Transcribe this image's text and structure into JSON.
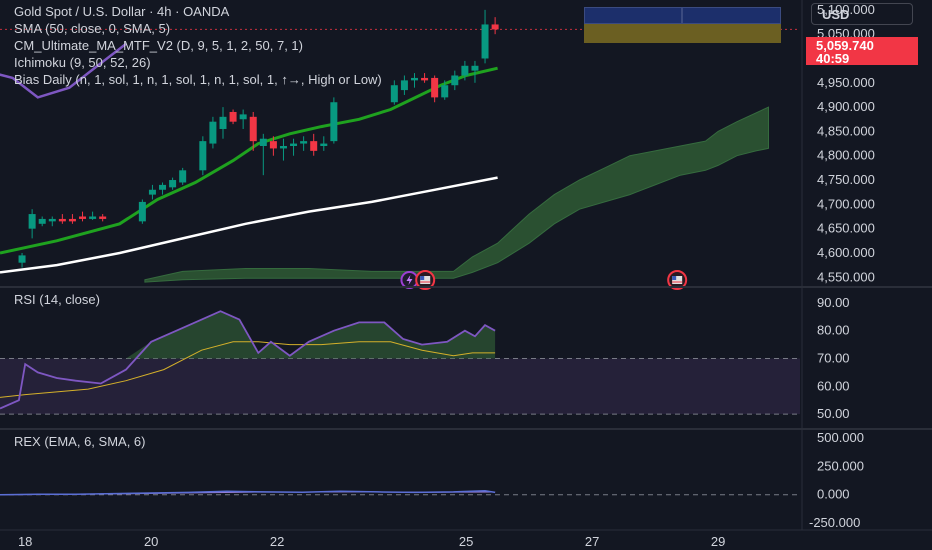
{
  "legend": {
    "symbol": "Gold Spot / U.S. Dollar · 4h · OANDA",
    "sma": "SMA (50, close, 0, SMA, 5)",
    "cm": "CM_Ultimate_MA_MTF_V2 (D, 9, 5, 1, 2, 50, 7, 1)",
    "ichimoku": "Ichimoku (9, 50, 52, 26)",
    "bias": "Bias Daily (n, 1, sol, 1, n, 1, sol, 1, n, 1, sol, 1, ↑→, High or Low)",
    "rsi": "RSI (14, close)",
    "rex": "REX (EMA, 6, SMA, 6)"
  },
  "currency": "USD",
  "last_price": "5,059.740",
  "countdown": "40:59",
  "colors": {
    "background": "#131722",
    "up": "#089981",
    "down": "#f23645",
    "sma_fast": "#1fa21f",
    "sma_slow": "#ffffff",
    "cloud": "#2f5a34",
    "rsi_line": "#7e57c2",
    "rsi_ma": "#d4b02a",
    "rsi_band": "#2a2440"
  },
  "chart_data": [
    {
      "type": "candlestick",
      "panel": "price",
      "title": "Gold Spot / U.S. Dollar · 4h · OANDA",
      "x_tick_labels": [
        "18",
        "20",
        "22",
        "25",
        "27",
        "29"
      ],
      "x_tick_days": [
        18,
        20,
        22,
        25,
        27,
        29
      ],
      "ylim": [
        4530,
        5110
      ],
      "y_tick_labels": [
        "5,100.000",
        "5,050.000",
        "5,000.000",
        "4,950.000",
        "4,900.000",
        "4,850.000",
        "4,800.000",
        "4,750.000",
        "4,700.000",
        "4,650.000",
        "4,600.000",
        "4,550.000"
      ],
      "y_ticks": [
        5100,
        5050,
        5000,
        4950,
        4900,
        4850,
        4800,
        4750,
        4700,
        4650,
        4600,
        4550
      ],
      "candles": [
        {
          "t": 17.95,
          "o": 4580,
          "h": 4600,
          "l": 4570,
          "c": 4595
        },
        {
          "t": 18.11,
          "o": 4650,
          "h": 4690,
          "l": 4630,
          "c": 4680
        },
        {
          "t": 18.27,
          "o": 4660,
          "h": 4675,
          "l": 4655,
          "c": 4670
        },
        {
          "t": 18.43,
          "o": 4665,
          "h": 4675,
          "l": 4655,
          "c": 4670
        },
        {
          "t": 18.59,
          "o": 4670,
          "h": 4680,
          "l": 4660,
          "c": 4665
        },
        {
          "t": 18.75,
          "o": 4670,
          "h": 4680,
          "l": 4660,
          "c": 4665
        },
        {
          "t": 18.91,
          "o": 4675,
          "h": 4685,
          "l": 4665,
          "c": 4670
        },
        {
          "t": 19.07,
          "o": 4670,
          "h": 4685,
          "l": 4668,
          "c": 4675
        },
        {
          "t": 19.23,
          "o": 4675,
          "h": 4680,
          "l": 4665,
          "c": 4670
        },
        {
          "t": 19.86,
          "o": 4665,
          "h": 4710,
          "l": 4660,
          "c": 4705
        },
        {
          "t": 20.02,
          "o": 4720,
          "h": 4740,
          "l": 4710,
          "c": 4730
        },
        {
          "t": 20.18,
          "o": 4730,
          "h": 4745,
          "l": 4720,
          "c": 4740
        },
        {
          "t": 20.34,
          "o": 4735,
          "h": 4755,
          "l": 4730,
          "c": 4750
        },
        {
          "t": 20.5,
          "o": 4745,
          "h": 4775,
          "l": 4740,
          "c": 4770
        },
        {
          "t": 20.82,
          "o": 4770,
          "h": 4840,
          "l": 4760,
          "c": 4830
        },
        {
          "t": 20.98,
          "o": 4825,
          "h": 4880,
          "l": 4815,
          "c": 4870
        },
        {
          "t": 21.14,
          "o": 4855,
          "h": 4900,
          "l": 4835,
          "c": 4880
        },
        {
          "t": 21.3,
          "o": 4890,
          "h": 4895,
          "l": 4865,
          "c": 4870
        },
        {
          "t": 21.46,
          "o": 4875,
          "h": 4895,
          "l": 4855,
          "c": 4885
        },
        {
          "t": 21.62,
          "o": 4880,
          "h": 4890,
          "l": 4810,
          "c": 4830
        },
        {
          "t": 21.78,
          "o": 4820,
          "h": 4845,
          "l": 4760,
          "c": 4835
        },
        {
          "t": 21.94,
          "o": 4830,
          "h": 4840,
          "l": 4800,
          "c": 4815
        },
        {
          "t": 22.1,
          "o": 4815,
          "h": 4835,
          "l": 4790,
          "c": 4820
        },
        {
          "t": 22.26,
          "o": 4820,
          "h": 4835,
          "l": 4800,
          "c": 4825
        },
        {
          "t": 22.42,
          "o": 4825,
          "h": 4840,
          "l": 4810,
          "c": 4830
        },
        {
          "t": 22.58,
          "o": 4830,
          "h": 4845,
          "l": 4800,
          "c": 4810
        },
        {
          "t": 22.74,
          "o": 4820,
          "h": 4840,
          "l": 4810,
          "c": 4825
        },
        {
          "t": 22.9,
          "o": 4830,
          "h": 4920,
          "l": 4825,
          "c": 4910
        },
        {
          "t": 23.86,
          "o": 4910,
          "h": 4955,
          "l": 4905,
          "c": 4945
        },
        {
          "t": 24.02,
          "o": 4935,
          "h": 4965,
          "l": 4925,
          "c": 4955
        },
        {
          "t": 24.18,
          "o": 4955,
          "h": 4970,
          "l": 4940,
          "c": 4960
        },
        {
          "t": 24.34,
          "o": 4960,
          "h": 4970,
          "l": 4950,
          "c": 4955
        },
        {
          "t": 24.5,
          "o": 4960,
          "h": 4965,
          "l": 4910,
          "c": 4920
        },
        {
          "t": 24.66,
          "o": 4920,
          "h": 4955,
          "l": 4915,
          "c": 4945
        },
        {
          "t": 24.82,
          "o": 4945,
          "h": 4975,
          "l": 4935,
          "c": 4965
        },
        {
          "t": 24.98,
          "o": 4965,
          "h": 4995,
          "l": 4955,
          "c": 4985
        },
        {
          "t": 25.14,
          "o": 4975,
          "h": 4995,
          "l": 4950,
          "c": 4985
        },
        {
          "t": 25.3,
          "o": 5000,
          "h": 5100,
          "l": 4990,
          "c": 5070
        },
        {
          "t": 25.46,
          "o": 5070,
          "h": 5085,
          "l": 5050,
          "c": 5059.74
        }
      ],
      "sma_fast": [
        [
          17.6,
          4600
        ],
        [
          18.5,
          4625
        ],
        [
          19.5,
          4660
        ],
        [
          20.1,
          4710
        ],
        [
          20.7,
          4745
        ],
        [
          21.3,
          4790
        ],
        [
          21.7,
          4825
        ],
        [
          22.2,
          4845
        ],
        [
          22.7,
          4860
        ],
        [
          23.3,
          4875
        ],
        [
          23.8,
          4895
        ],
        [
          24.2,
          4920
        ],
        [
          24.6,
          4945
        ],
        [
          25.0,
          4965
        ],
        [
          25.5,
          4980
        ]
      ],
      "sma_slow": [
        [
          17.6,
          4560
        ],
        [
          18.5,
          4575
        ],
        [
          19.5,
          4600
        ],
        [
          20.5,
          4630
        ],
        [
          21.5,
          4660
        ],
        [
          22.5,
          4685
        ],
        [
          23.5,
          4705
        ],
        [
          24.5,
          4730
        ],
        [
          25.5,
          4755
        ]
      ],
      "cloud_top": [
        [
          19.9,
          4545
        ],
        [
          20.5,
          4562
        ],
        [
          21.5,
          4568
        ],
        [
          22.5,
          4568
        ],
        [
          23.5,
          4562
        ],
        [
          24.8,
          4562
        ],
        [
          25.1,
          4592
        ],
        [
          25.5,
          4620
        ],
        [
          26.0,
          4680
        ],
        [
          26.4,
          4720
        ],
        [
          26.8,
          4750
        ],
        [
          27.2,
          4775
        ],
        [
          27.6,
          4800
        ],
        [
          28.0,
          4810
        ],
        [
          28.4,
          4820
        ],
        [
          28.8,
          4830
        ],
        [
          29.0,
          4850
        ],
        [
          29.3,
          4870
        ],
        [
          29.8,
          4900
        ]
      ],
      "cloud_bottom": [
        [
          19.9,
          4540
        ],
        [
          20.5,
          4545
        ],
        [
          21.5,
          4548
        ],
        [
          22.5,
          4548
        ],
        [
          23.5,
          4548
        ],
        [
          24.8,
          4548
        ],
        [
          25.1,
          4560
        ],
        [
          25.5,
          4580
        ],
        [
          26.0,
          4620
        ],
        [
          26.4,
          4660
        ],
        [
          26.8,
          4690
        ],
        [
          27.2,
          4705
        ],
        [
          27.6,
          4720
        ],
        [
          28.0,
          4740
        ],
        [
          28.4,
          4760
        ],
        [
          28.8,
          4770
        ],
        [
          29.0,
          4780
        ],
        [
          29.3,
          4800
        ],
        [
          29.6,
          4810
        ],
        [
          29.8,
          4815
        ]
      ],
      "other_line": [
        [
          17.5,
          4970
        ],
        [
          17.8,
          4960
        ],
        [
          18.2,
          4920
        ],
        [
          18.7,
          4940
        ],
        [
          19.2,
          4990
        ],
        [
          19.6,
          5030
        ]
      ],
      "event_markers": [
        {
          "t": 24.1,
          "kind": "lightning"
        },
        {
          "t": 24.35,
          "kind": "flag"
        },
        {
          "t": 28.35,
          "kind": "flag"
        }
      ]
    },
    {
      "type": "line",
      "panel": "rsi",
      "title": "RSI (14, close)",
      "ylim": [
        45,
        95
      ],
      "y_tick_labels": [
        "90.00",
        "80.00",
        "70.00",
        "60.00",
        "50.00"
      ],
      "y_ticks": [
        90,
        80,
        70,
        60,
        50
      ],
      "band": [
        50,
        70
      ],
      "series": [
        {
          "key": "rsi",
          "values": [
            [
              17.6,
              52
            ],
            [
              17.9,
              55
            ],
            [
              18.0,
              68
            ],
            [
              18.2,
              65
            ],
            [
              18.5,
              63
            ],
            [
              18.8,
              62
            ],
            [
              19.2,
              61
            ],
            [
              19.6,
              66
            ],
            [
              20.0,
              76
            ],
            [
              20.4,
              80
            ],
            [
              20.8,
              84
            ],
            [
              21.1,
              87
            ],
            [
              21.4,
              84
            ],
            [
              21.7,
              72
            ],
            [
              21.9,
              76
            ],
            [
              22.2,
              71
            ],
            [
              22.5,
              76
            ],
            [
              22.9,
              80
            ],
            [
              23.3,
              83
            ],
            [
              23.7,
              83
            ],
            [
              24.0,
              77
            ],
            [
              24.3,
              75
            ],
            [
              24.7,
              76
            ],
            [
              24.98,
              80
            ],
            [
              25.14,
              78
            ],
            [
              25.3,
              82
            ],
            [
              25.46,
              80
            ]
          ]
        },
        {
          "key": "rsi_ma",
          "values": [
            [
              17.6,
              56
            ],
            [
              18.0,
              57
            ],
            [
              18.5,
              58
            ],
            [
              19.0,
              59
            ],
            [
              19.6,
              62
            ],
            [
              20.2,
              66
            ],
            [
              20.8,
              73
            ],
            [
              21.3,
              76
            ],
            [
              21.7,
              76
            ],
            [
              22.2,
              75
            ],
            [
              22.7,
              75
            ],
            [
              23.3,
              76
            ],
            [
              23.8,
              76
            ],
            [
              24.3,
              73
            ],
            [
              24.8,
              71
            ],
            [
              25.1,
              72
            ],
            [
              25.46,
              72
            ]
          ]
        }
      ]
    },
    {
      "type": "line",
      "panel": "rex",
      "title": "REX (EMA, 6, SMA, 6)",
      "ylim": [
        -310,
        560
      ],
      "y_tick_labels": [
        "500.000",
        "250.000",
        "0.000",
        "-250.000"
      ],
      "y_ticks": [
        500,
        250,
        0,
        -250
      ],
      "series": [
        {
          "key": "rex",
          "values": [
            [
              17.6,
              0
            ],
            [
              18.2,
              5
            ],
            [
              18.8,
              5
            ],
            [
              19.4,
              10
            ],
            [
              20.0,
              15
            ],
            [
              20.6,
              20
            ],
            [
              21.2,
              30
            ],
            [
              21.8,
              25
            ],
            [
              22.4,
              22
            ],
            [
              23.0,
              30
            ],
            [
              23.6,
              25
            ],
            [
              24.2,
              20
            ],
            [
              24.8,
              25
            ],
            [
              25.3,
              35
            ],
            [
              25.46,
              20
            ]
          ]
        },
        {
          "key": "rex_signal",
          "values": [
            [
              17.6,
              0
            ],
            [
              18.5,
              3
            ],
            [
              19.5,
              8
            ],
            [
              20.5,
              15
            ],
            [
              21.5,
              22
            ],
            [
              22.5,
              24
            ],
            [
              23.5,
              25
            ],
            [
              24.5,
              22
            ],
            [
              25.46,
              24
            ]
          ]
        }
      ]
    }
  ]
}
